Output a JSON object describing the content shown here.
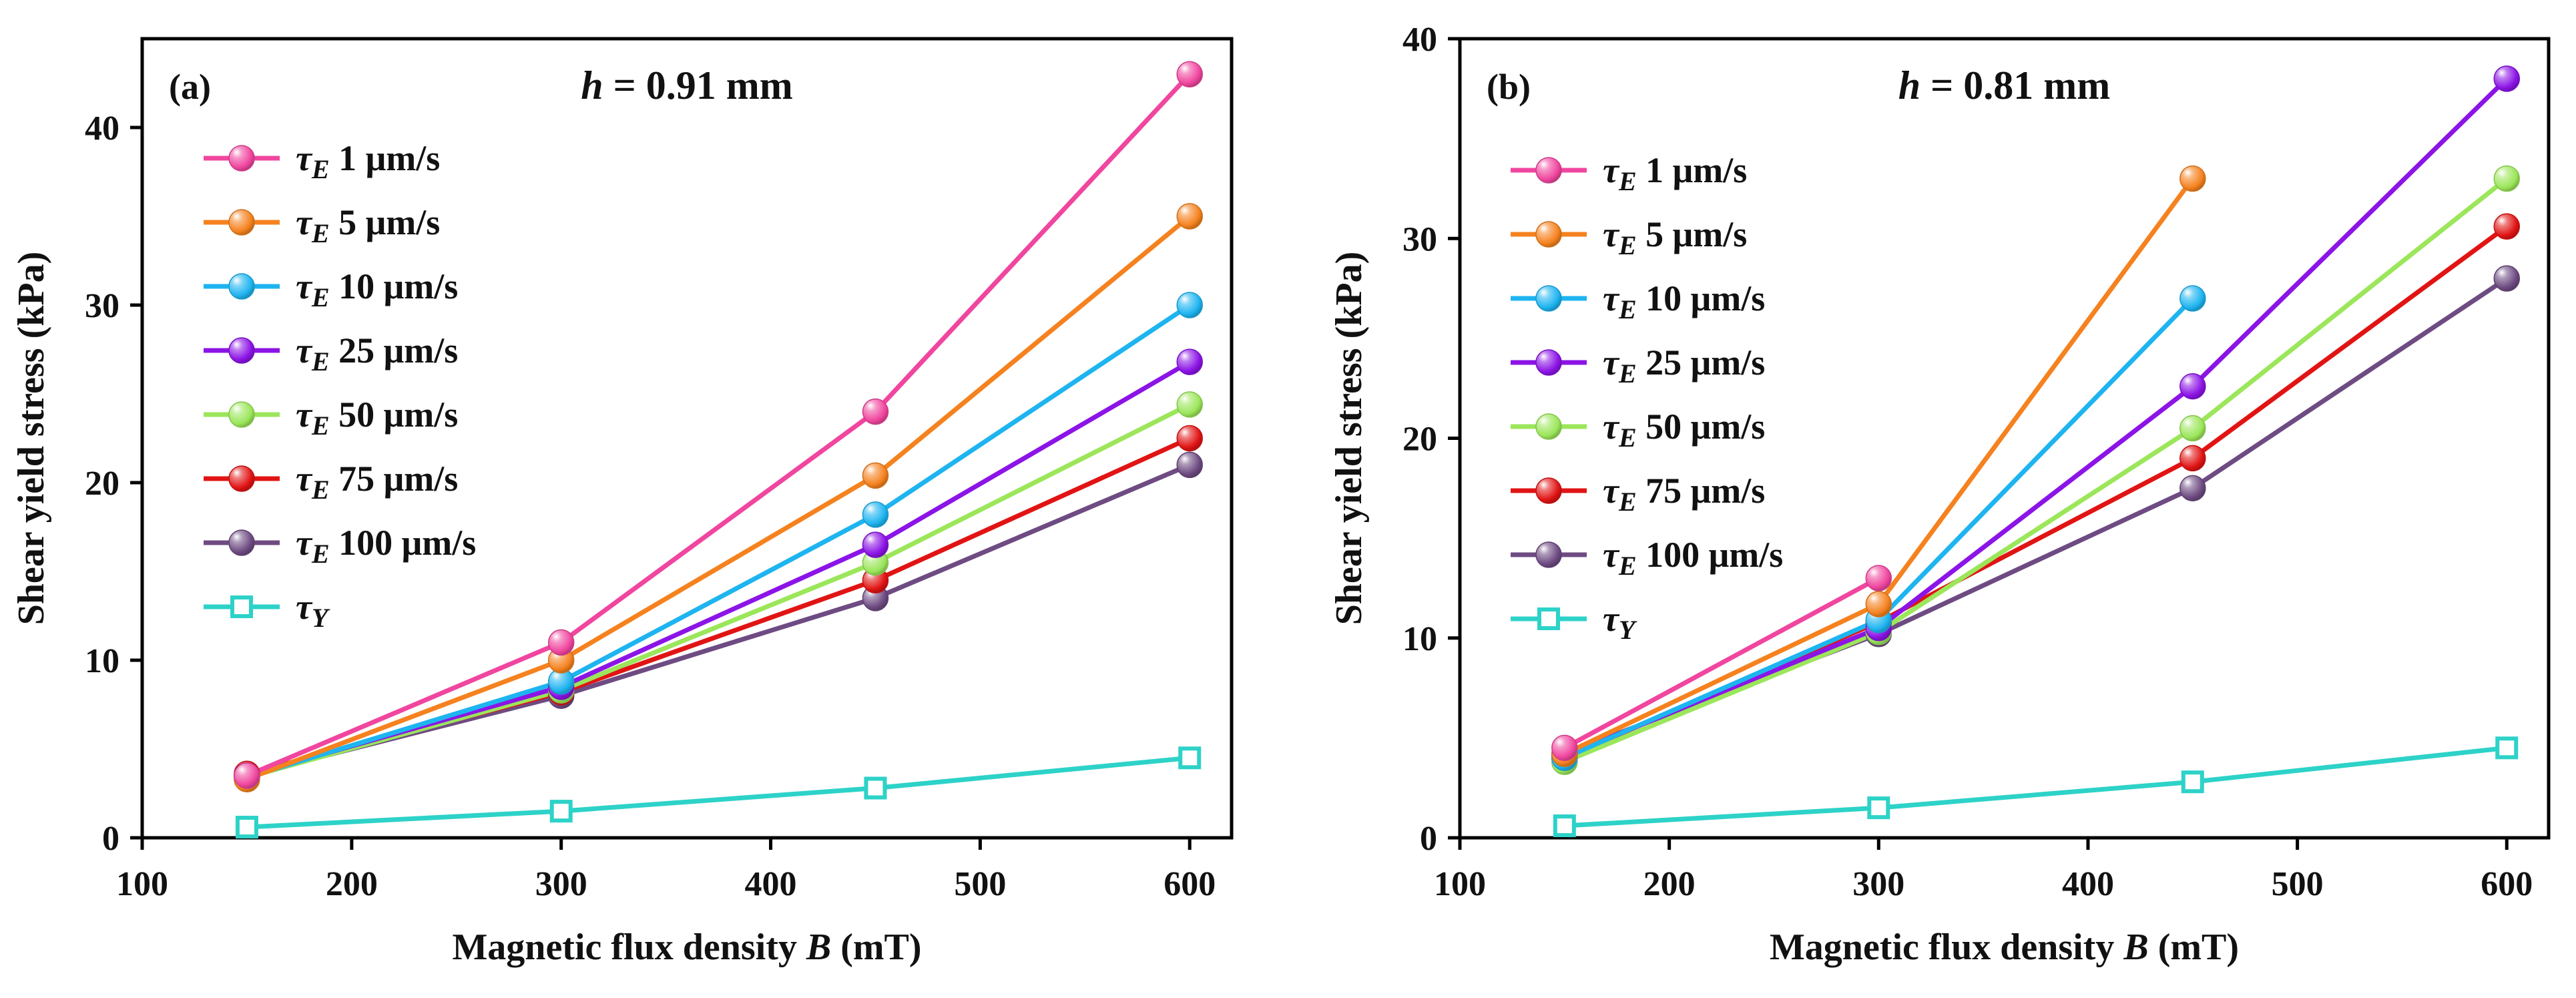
{
  "chart_data": [
    {
      "type": "line",
      "panel_label": "(a)",
      "title_var": "h",
      "title_value": " = 0.91 mm",
      "xlabel_text": "Magnetic flux density ",
      "xlabel_var": "B",
      "xlabel_unit": " (mT)",
      "ylabel": "Shear yield stress (kPa)",
      "xlim": [
        100,
        620
      ],
      "ylim": [
        0,
        45
      ],
      "xticks": [
        100,
        200,
        300,
        400,
        500,
        600
      ],
      "yticks": [
        0,
        10,
        20,
        30,
        40
      ],
      "legend_position": "top-left",
      "series": [
        {
          "name": "τE 1 μm/s",
          "sym": "τ",
          "sub": "E",
          "rest": " 1 μm/s",
          "color": "#f0469f",
          "marker": "sphere",
          "x": [
            150,
            300,
            450,
            600
          ],
          "y": [
            3.5,
            11.0,
            24.0,
            43.0
          ]
        },
        {
          "name": "τE 5 μm/s",
          "sym": "τ",
          "sub": "E",
          "rest": " 5 μm/s",
          "color": "#f5821f",
          "marker": "sphere",
          "x": [
            150,
            300,
            450,
            600
          ],
          "y": [
            3.3,
            10.0,
            20.4,
            35.0
          ]
        },
        {
          "name": "τE 10 μm/s",
          "sym": "τ",
          "sub": "E",
          "rest": " 10 μm/s",
          "color": "#1eb4f0",
          "marker": "sphere",
          "x": [
            150,
            300,
            450,
            600
          ],
          "y": [
            3.4,
            8.8,
            18.2,
            30.0
          ]
        },
        {
          "name": "τE 25 μm/s",
          "sym": "τ",
          "sub": "E",
          "rest": " 25 μm/s",
          "color": "#8c14e6",
          "marker": "sphere",
          "x": [
            150,
            300,
            450,
            600
          ],
          "y": [
            3.5,
            8.5,
            16.5,
            26.8
          ]
        },
        {
          "name": "τE 50 μm/s",
          "sym": "τ",
          "sub": "E",
          "rest": " 50 μm/s",
          "color": "#9be65a",
          "marker": "sphere",
          "x": [
            150,
            300,
            450,
            600
          ],
          "y": [
            3.4,
            8.3,
            15.5,
            24.4
          ]
        },
        {
          "name": "τE 75 μm/s",
          "sym": "τ",
          "sub": "E",
          "rest": " 75 μm/s",
          "color": "#e11414",
          "marker": "sphere",
          "x": [
            150,
            300,
            450,
            600
          ],
          "y": [
            3.6,
            8.2,
            14.5,
            22.5
          ]
        },
        {
          "name": "τE 100 μm/s",
          "sym": "τ",
          "sub": "E",
          "rest": " 100 μm/s",
          "color": "#6e4b82",
          "marker": "sphere",
          "x": [
            150,
            300,
            450,
            600
          ],
          "y": [
            3.5,
            8.0,
            13.5,
            21.0
          ]
        },
        {
          "name": "τY",
          "sym": "τ",
          "sub": "Y",
          "rest": "",
          "color": "#2dd2c8",
          "marker": "square",
          "x": [
            150,
            300,
            450,
            600
          ],
          "y": [
            0.6,
            1.5,
            2.8,
            4.5
          ]
        }
      ]
    },
    {
      "type": "line",
      "panel_label": "(b)",
      "title_var": "h",
      "title_value": " = 0.81 mm",
      "xlabel_text": "Magnetic flux density ",
      "xlabel_var": "B",
      "xlabel_unit": " (mT)",
      "ylabel": "Shear yield stress (kPa)",
      "xlim": [
        100,
        620
      ],
      "ylim": [
        0,
        40
      ],
      "xticks": [
        100,
        200,
        300,
        400,
        500,
        600
      ],
      "yticks": [
        0,
        10,
        20,
        30,
        40
      ],
      "legend_position": "top-left",
      "series": [
        {
          "name": "τE 1 μm/s",
          "sym": "τ",
          "sub": "E",
          "rest": " 1 μm/s",
          "color": "#f0469f",
          "marker": "sphere",
          "x": [
            150,
            300
          ],
          "y": [
            4.5,
            13.0
          ]
        },
        {
          "name": "τE 5 μm/s",
          "sym": "τ",
          "sub": "E",
          "rest": " 5 μm/s",
          "color": "#f5821f",
          "marker": "sphere",
          "x": [
            150,
            300,
            450
          ],
          "y": [
            4.2,
            11.7,
            33.0
          ]
        },
        {
          "name": "τE 10 μm/s",
          "sym": "τ",
          "sub": "E",
          "rest": " 10 μm/s",
          "color": "#1eb4f0",
          "marker": "sphere",
          "x": [
            150,
            300,
            450
          ],
          "y": [
            4.0,
            10.9,
            27.0
          ]
        },
        {
          "name": "τE 25 μm/s",
          "sym": "τ",
          "sub": "E",
          "rest": " 25 μm/s",
          "color": "#8c14e6",
          "marker": "sphere",
          "x": [
            150,
            300,
            450,
            600
          ],
          "y": [
            4.1,
            10.5,
            22.6,
            38.0
          ]
        },
        {
          "name": "τE 50 μm/s",
          "sym": "τ",
          "sub": "E",
          "rest": " 50 μm/s",
          "color": "#9be65a",
          "marker": "sphere",
          "x": [
            150,
            300,
            450,
            600
          ],
          "y": [
            3.8,
            10.3,
            20.5,
            33.0
          ]
        },
        {
          "name": "τE 75 μm/s",
          "sym": "τ",
          "sub": "E",
          "rest": " 75 μm/s",
          "color": "#e11414",
          "marker": "sphere",
          "x": [
            150,
            300,
            450,
            600
          ],
          "y": [
            4.0,
            10.8,
            19.0,
            30.6
          ]
        },
        {
          "name": "τE 100 μm/s",
          "sym": "τ",
          "sub": "E",
          "rest": " 100 μm/s",
          "color": "#6e4b82",
          "marker": "sphere",
          "x": [
            150,
            300,
            450,
            600
          ],
          "y": [
            4.2,
            10.2,
            17.5,
            28.0
          ]
        },
        {
          "name": "τY",
          "sym": "τ",
          "sub": "Y",
          "rest": "",
          "color": "#2dd2c8",
          "marker": "square",
          "x": [
            150,
            300,
            450,
            600
          ],
          "y": [
            0.6,
            1.5,
            2.8,
            4.5
          ]
        }
      ]
    }
  ]
}
